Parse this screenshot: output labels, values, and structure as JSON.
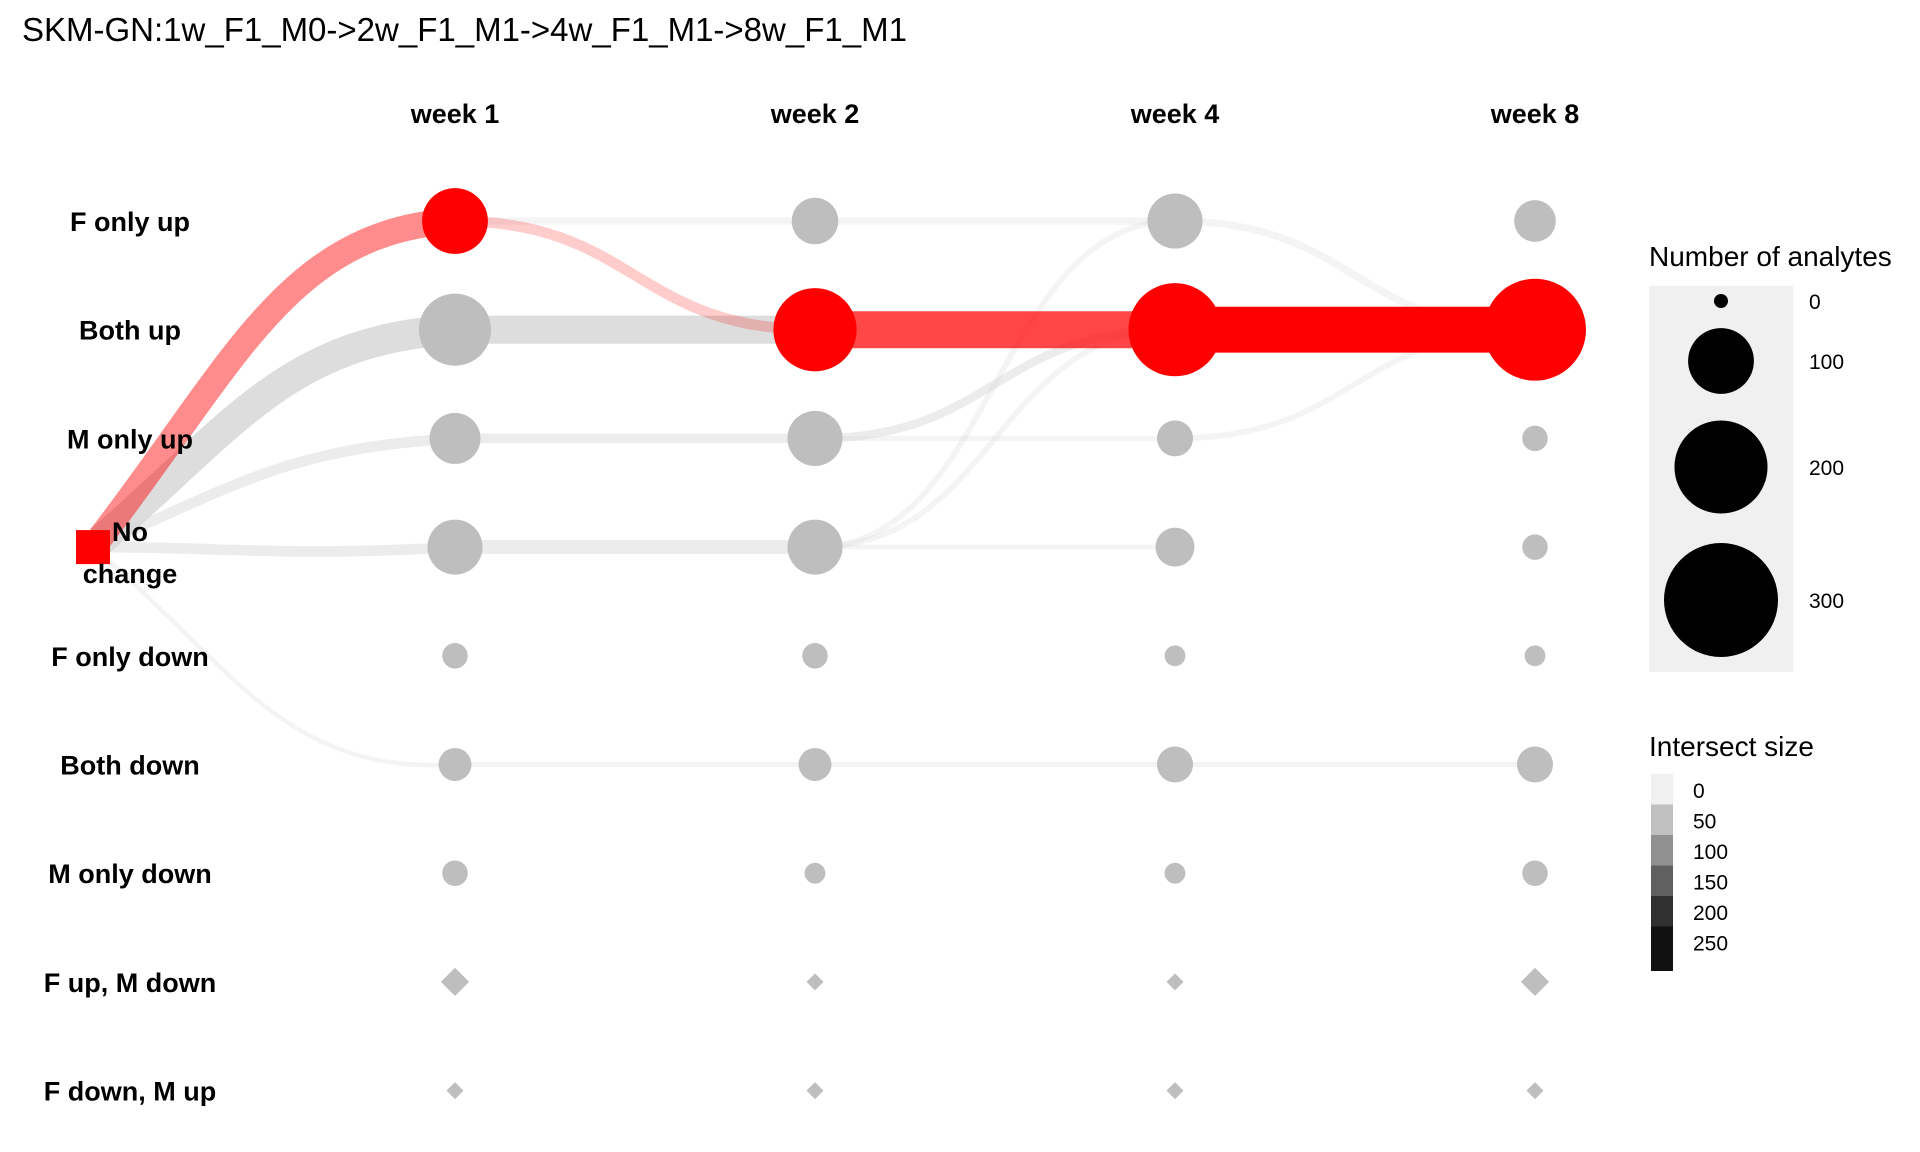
{
  "title": "SKM-GN:1w_F1_M0->2w_F1_M1->4w_F1_M1->8w_F1_M1",
  "chart_data": {
    "type": "alluvial",
    "columns": [
      "week 1",
      "week 2",
      "week 4",
      "week 8"
    ],
    "states": [
      "F only up",
      "Both up",
      "M only up",
      "No change",
      "F only down",
      "Both down",
      "M only down",
      "F up, M down",
      "F down, M up"
    ],
    "start_node": {
      "state": "No change",
      "color": "#ff0000",
      "label": [
        "No",
        "change"
      ]
    },
    "highlight_path": [
      "F only up",
      "Both up",
      "Both up",
      "Both up"
    ],
    "highlight_color": "#ff0000",
    "node_counts": {
      "week 1": [
        100,
        120,
        60,
        70,
        15,
        25,
        15,
        0,
        0
      ],
      "week 2": [
        50,
        160,
        70,
        70,
        15,
        25,
        10,
        0,
        0
      ],
      "week 4": [
        70,
        200,
        30,
        35,
        10,
        30,
        10,
        0,
        0
      ],
      "week 8": [
        40,
        240,
        15,
        15,
        10,
        30,
        15,
        0,
        0
      ]
    },
    "flows": [
      {
        "from_col": 0,
        "from": "No change",
        "to": "F only up",
        "value": 100,
        "highlight": true
      },
      {
        "from_col": 0,
        "from": "No change",
        "to": "Both up",
        "value": 120
      },
      {
        "from_col": 0,
        "from": "No change",
        "to": "M only up",
        "value": 30
      },
      {
        "from_col": 0,
        "from": "No change",
        "to": "No change",
        "value": 30
      },
      {
        "from_col": 0,
        "from": "No change",
        "to": "Both down",
        "value": 2
      },
      {
        "from_col": 1,
        "from": "F only up",
        "to": "Both up",
        "value": 30,
        "highlight": true
      },
      {
        "from_col": 1,
        "from": "F only up",
        "to": "F only up",
        "value": 15
      },
      {
        "from_col": 1,
        "from": "Both up",
        "to": "Both up",
        "value": 110
      },
      {
        "from_col": 1,
        "from": "M only up",
        "to": "M only up",
        "value": 25
      },
      {
        "from_col": 1,
        "from": "No change",
        "to": "No change",
        "value": 45
      },
      {
        "from_col": 1,
        "from": "Both down",
        "to": "Both down",
        "value": 5
      },
      {
        "from_col": 2,
        "from": "Both up",
        "to": "Both up",
        "value": 150,
        "highlight": true
      },
      {
        "from_col": 2,
        "from": "F only up",
        "to": "F only up",
        "value": 15
      },
      {
        "from_col": 2,
        "from": "M only up",
        "to": "Both up",
        "value": 20
      },
      {
        "from_col": 2,
        "from": "No change",
        "to": "F only up",
        "value": 8
      },
      {
        "from_col": 2,
        "from": "No change",
        "to": "Both up",
        "value": 8
      },
      {
        "from_col": 2,
        "from": "M only up",
        "to": "M only up",
        "value": 5
      },
      {
        "from_col": 2,
        "from": "No change",
        "to": "No change",
        "value": 4
      },
      {
        "from_col": 2,
        "from": "Both down",
        "to": "Both down",
        "value": 5
      },
      {
        "from_col": 3,
        "from": "Both up",
        "to": "Both up",
        "value": 190,
        "highlight": true
      },
      {
        "from_col": 3,
        "from": "F only up",
        "to": "Both up",
        "value": 15
      },
      {
        "from_col": 3,
        "from": "M only up",
        "to": "Both up",
        "value": 8
      },
      {
        "from_col": 3,
        "from": "Both down",
        "to": "Both down",
        "value": 5
      }
    ],
    "legend_size": {
      "title": "Number of analytes",
      "entries": [
        {
          "label": "0",
          "value": 0
        },
        {
          "label": "100",
          "value": 100
        },
        {
          "label": "200",
          "value": 200
        },
        {
          "label": "300",
          "value": 300
        }
      ]
    },
    "legend_color": {
      "title": "Intersect size",
      "entries": [
        {
          "label": "0",
          "color": "#f0f0f0"
        },
        {
          "label": "50",
          "color": "#c0c0c0"
        },
        {
          "label": "100",
          "color": "#909090"
        },
        {
          "label": "150",
          "color": "#606060"
        },
        {
          "label": "200",
          "color": "#303030"
        },
        {
          "label": "250",
          "color": "#111111"
        }
      ]
    },
    "colors": {
      "node": "#bebebe",
      "highlight": "#ff0000",
      "flow": "#d9d9d9",
      "legend_bg": "#f0f0f0"
    }
  }
}
